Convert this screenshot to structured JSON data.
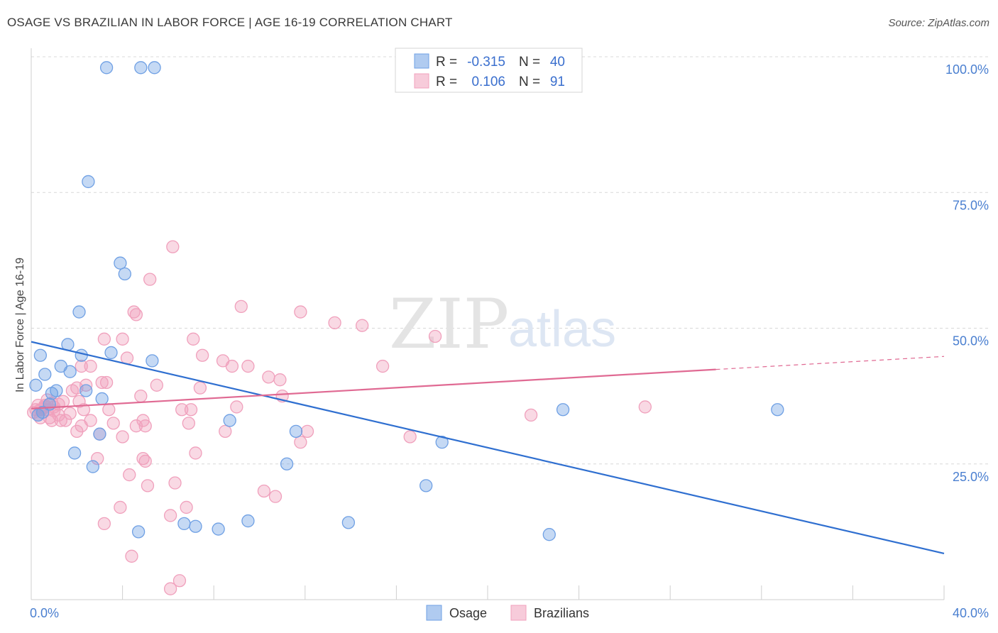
{
  "title": "OSAGE VS BRAZILIAN IN LABOR FORCE | AGE 16-19 CORRELATION CHART",
  "source": "Source: ZipAtlas.com",
  "watermark": {
    "zip": "ZIP",
    "atlas": "atlas"
  },
  "colors": {
    "osage": "#6fa0e4",
    "osage_line": "#2f6fd0",
    "brazilians": "#f0a0bc",
    "brazilians_line": "#e06a93",
    "grid": "#d8d8d8",
    "tick_text": "#4a7fd0"
  },
  "legend": {
    "r_label": "R =",
    "n_label": "N =",
    "rows": [
      {
        "series": "Osage",
        "r": "-0.315",
        "n": "40"
      },
      {
        "series": "Brazilians",
        "r": "0.106",
        "n": "91"
      }
    ]
  },
  "chart_data": {
    "type": "scatter",
    "title": "OSAGE VS BRAZILIAN IN LABOR FORCE | AGE 16-19 CORRELATION CHART",
    "xlabel": "",
    "ylabel": "In Labor Force | Age 16-19",
    "xlim": [
      0,
      40
    ],
    "ylim": [
      0,
      100
    ],
    "x_ticks": [
      "0.0%",
      "40.0%"
    ],
    "y_ticks": [
      {
        "v": 100,
        "label": "100.0%"
      },
      {
        "v": 75,
        "label": "75.0%"
      },
      {
        "v": 50,
        "label": "50.0%"
      },
      {
        "v": 25,
        "label": "25.0%"
      }
    ],
    "grid": true,
    "legend_position": "top-center",
    "series": [
      {
        "name": "Osage",
        "points": [
          [
            3.3,
            98
          ],
          [
            4.8,
            98
          ],
          [
            5.4,
            98
          ],
          [
            2.5,
            77
          ],
          [
            3.9,
            62
          ],
          [
            4.1,
            60
          ],
          [
            2.1,
            53
          ],
          [
            1.6,
            47
          ],
          [
            0.4,
            45
          ],
          [
            1.3,
            43
          ],
          [
            2.2,
            45
          ],
          [
            3.5,
            45.5
          ],
          [
            5.3,
            44
          ],
          [
            0.6,
            41.5
          ],
          [
            1.7,
            42
          ],
          [
            0.2,
            39.5
          ],
          [
            0.9,
            38
          ],
          [
            2.4,
            38.5
          ],
          [
            3.1,
            37
          ],
          [
            0.3,
            34
          ],
          [
            8.7,
            33
          ],
          [
            11.6,
            31
          ],
          [
            18,
            29
          ],
          [
            23.3,
            35
          ],
          [
            32.7,
            35
          ],
          [
            1.9,
            27
          ],
          [
            2.7,
            24.5
          ],
          [
            11.2,
            25
          ],
          [
            17.3,
            21
          ],
          [
            4.7,
            12.5
          ],
          [
            6.7,
            14
          ],
          [
            7.2,
            13.5
          ],
          [
            8.2,
            13
          ],
          [
            9.5,
            14.5
          ],
          [
            13.9,
            14.2
          ],
          [
            22.7,
            12
          ],
          [
            0.5,
            34.5
          ],
          [
            1.1,
            38.5
          ],
          [
            3.0,
            30.5
          ],
          [
            0.8,
            36
          ]
        ]
      },
      {
        "name": "Brazilians",
        "points": [
          [
            6.2,
            65
          ],
          [
            5.2,
            59
          ],
          [
            9.2,
            54
          ],
          [
            11.8,
            53
          ],
          [
            4.5,
            53
          ],
          [
            4.6,
            52.5
          ],
          [
            13.3,
            51
          ],
          [
            14.5,
            50.5
          ],
          [
            3.2,
            48
          ],
          [
            4.0,
            48
          ],
          [
            7.1,
            48
          ],
          [
            17.7,
            48.5
          ],
          [
            7.5,
            45
          ],
          [
            4.2,
            44.5
          ],
          [
            8.4,
            44
          ],
          [
            8.8,
            43
          ],
          [
            9.5,
            43
          ],
          [
            15.4,
            43
          ],
          [
            2.6,
            43
          ],
          [
            2.2,
            43
          ],
          [
            10.4,
            41
          ],
          [
            10.9,
            40.5
          ],
          [
            5.5,
            39.5
          ],
          [
            7.4,
            39
          ],
          [
            3.1,
            40
          ],
          [
            3.3,
            40
          ],
          [
            2.4,
            39.5
          ],
          [
            2.0,
            39
          ],
          [
            1.8,
            38.5
          ],
          [
            11.0,
            37.5
          ],
          [
            4.8,
            37.5
          ],
          [
            1.4,
            36.5
          ],
          [
            1.0,
            35.5
          ],
          [
            0.7,
            35
          ],
          [
            0.4,
            35
          ],
          [
            0.6,
            35.5
          ],
          [
            0.2,
            35
          ],
          [
            0.1,
            34.5
          ],
          [
            0.3,
            34
          ],
          [
            1.2,
            34
          ],
          [
            2.3,
            35
          ],
          [
            3.4,
            35
          ],
          [
            6.6,
            35
          ],
          [
            7.0,
            35
          ],
          [
            9.0,
            35.5
          ],
          [
            0.9,
            33
          ],
          [
            1.5,
            33
          ],
          [
            2.6,
            33
          ],
          [
            4.9,
            33
          ],
          [
            0.8,
            33.5
          ],
          [
            1.3,
            33
          ],
          [
            5.0,
            32
          ],
          [
            3.6,
            32.5
          ],
          [
            6.9,
            32.5
          ],
          [
            2.2,
            32
          ],
          [
            4.6,
            32
          ],
          [
            8.5,
            31
          ],
          [
            21.9,
            34
          ],
          [
            26.9,
            35.5
          ],
          [
            2.0,
            31
          ],
          [
            4.0,
            30
          ],
          [
            12.1,
            31
          ],
          [
            16.6,
            30
          ],
          [
            11.8,
            29
          ],
          [
            3.0,
            30.5
          ],
          [
            7.2,
            27
          ],
          [
            2.9,
            26
          ],
          [
            4.9,
            26
          ],
          [
            5.0,
            25.5
          ],
          [
            4.3,
            23
          ],
          [
            5.1,
            21
          ],
          [
            6.3,
            21.5
          ],
          [
            10.2,
            20
          ],
          [
            10.7,
            19
          ],
          [
            3.9,
            17
          ],
          [
            6.8,
            17
          ],
          [
            6.1,
            15.5
          ],
          [
            3.2,
            14
          ],
          [
            4.4,
            8
          ],
          [
            6.5,
            3.5
          ],
          [
            6.1,
            2
          ],
          [
            0.6,
            35.8
          ],
          [
            1.0,
            34.8
          ],
          [
            0.5,
            35.2
          ],
          [
            1.7,
            34.3
          ],
          [
            0.9,
            36.2
          ],
          [
            0.3,
            35.8
          ],
          [
            0.7,
            36.8
          ],
          [
            2.1,
            36.5
          ],
          [
            0.4,
            33.5
          ],
          [
            1.2,
            36
          ]
        ]
      }
    ],
    "trend_lines": [
      {
        "series": "Osage",
        "x": [
          0,
          40
        ],
        "y": [
          47.5,
          8.5
        ],
        "dashed_after_x": null
      },
      {
        "series": "Brazilians",
        "x": [
          0,
          40
        ],
        "y": [
          35.2,
          44.8
        ],
        "dashed_after_x": 30
      }
    ]
  }
}
